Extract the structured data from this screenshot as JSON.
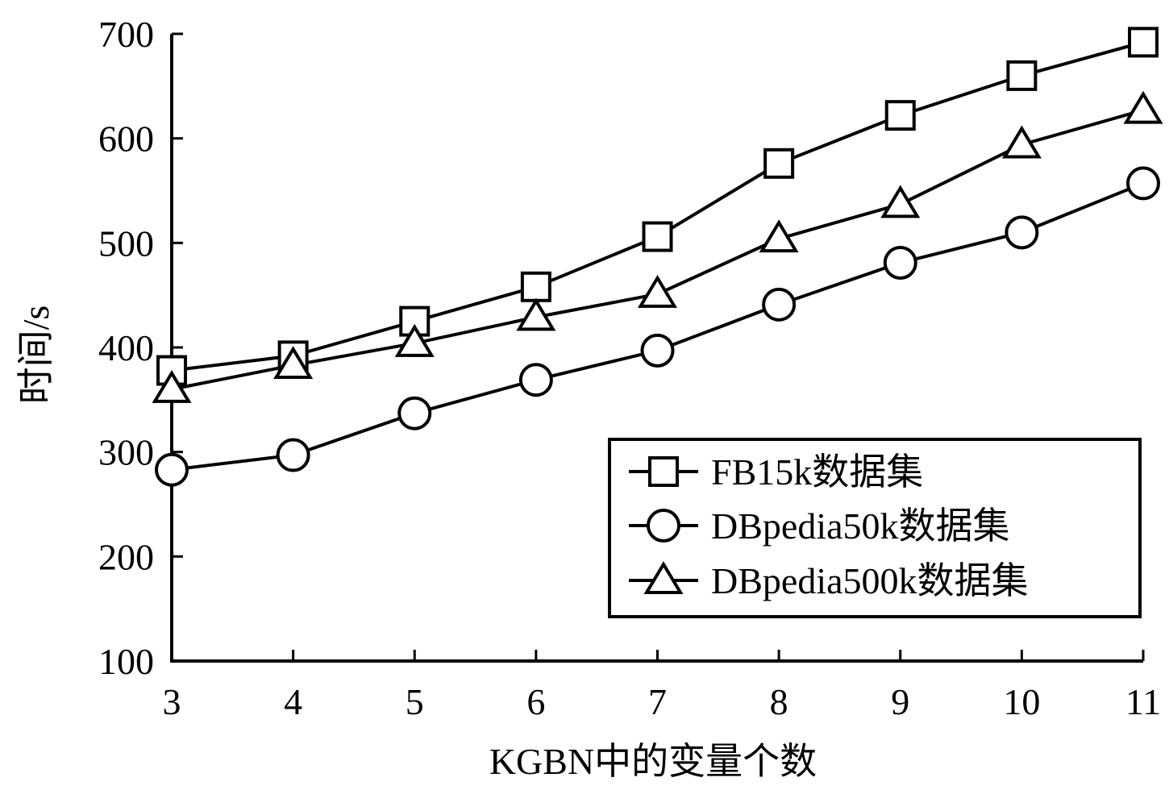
{
  "chart_data": {
    "type": "line",
    "title": "",
    "xlabel": "KGBN中的变量个数",
    "ylabel": "时间/s",
    "x": [
      3,
      4,
      5,
      6,
      7,
      8,
      9,
      10,
      11
    ],
    "xticks": [
      "3",
      "4",
      "5",
      "6",
      "7",
      "8",
      "9",
      "10",
      "11"
    ],
    "xlim": [
      3,
      11
    ],
    "yticks": [
      "100",
      "200",
      "300",
      "400",
      "500",
      "600",
      "700"
    ],
    "ylim": [
      100,
      700
    ],
    "grid": false,
    "legend_position": "lower-right",
    "series": [
      {
        "name": "FB15k数据集",
        "marker": "square",
        "values": [
          378,
          392,
          425,
          458,
          506,
          576,
          622,
          660,
          692
        ]
      },
      {
        "name": "DBpedia50k数据集",
        "marker": "circle",
        "values": [
          283,
          297,
          337,
          369,
          397,
          441,
          481,
          510,
          557
        ]
      },
      {
        "name": "DBpedia500k数据集",
        "marker": "triangle",
        "values": [
          360,
          383,
          404,
          429,
          451,
          504,
          537,
          594,
          627
        ]
      }
    ]
  }
}
